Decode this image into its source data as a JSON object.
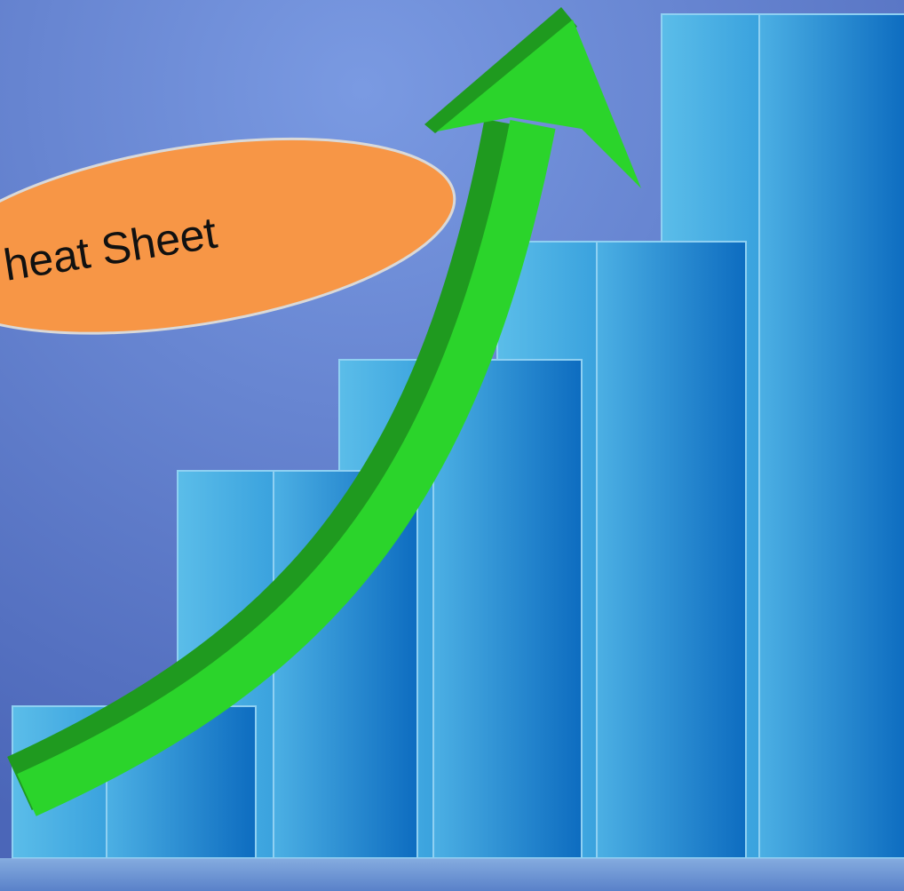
{
  "callout": {
    "text": "heat Sheet"
  }
}
